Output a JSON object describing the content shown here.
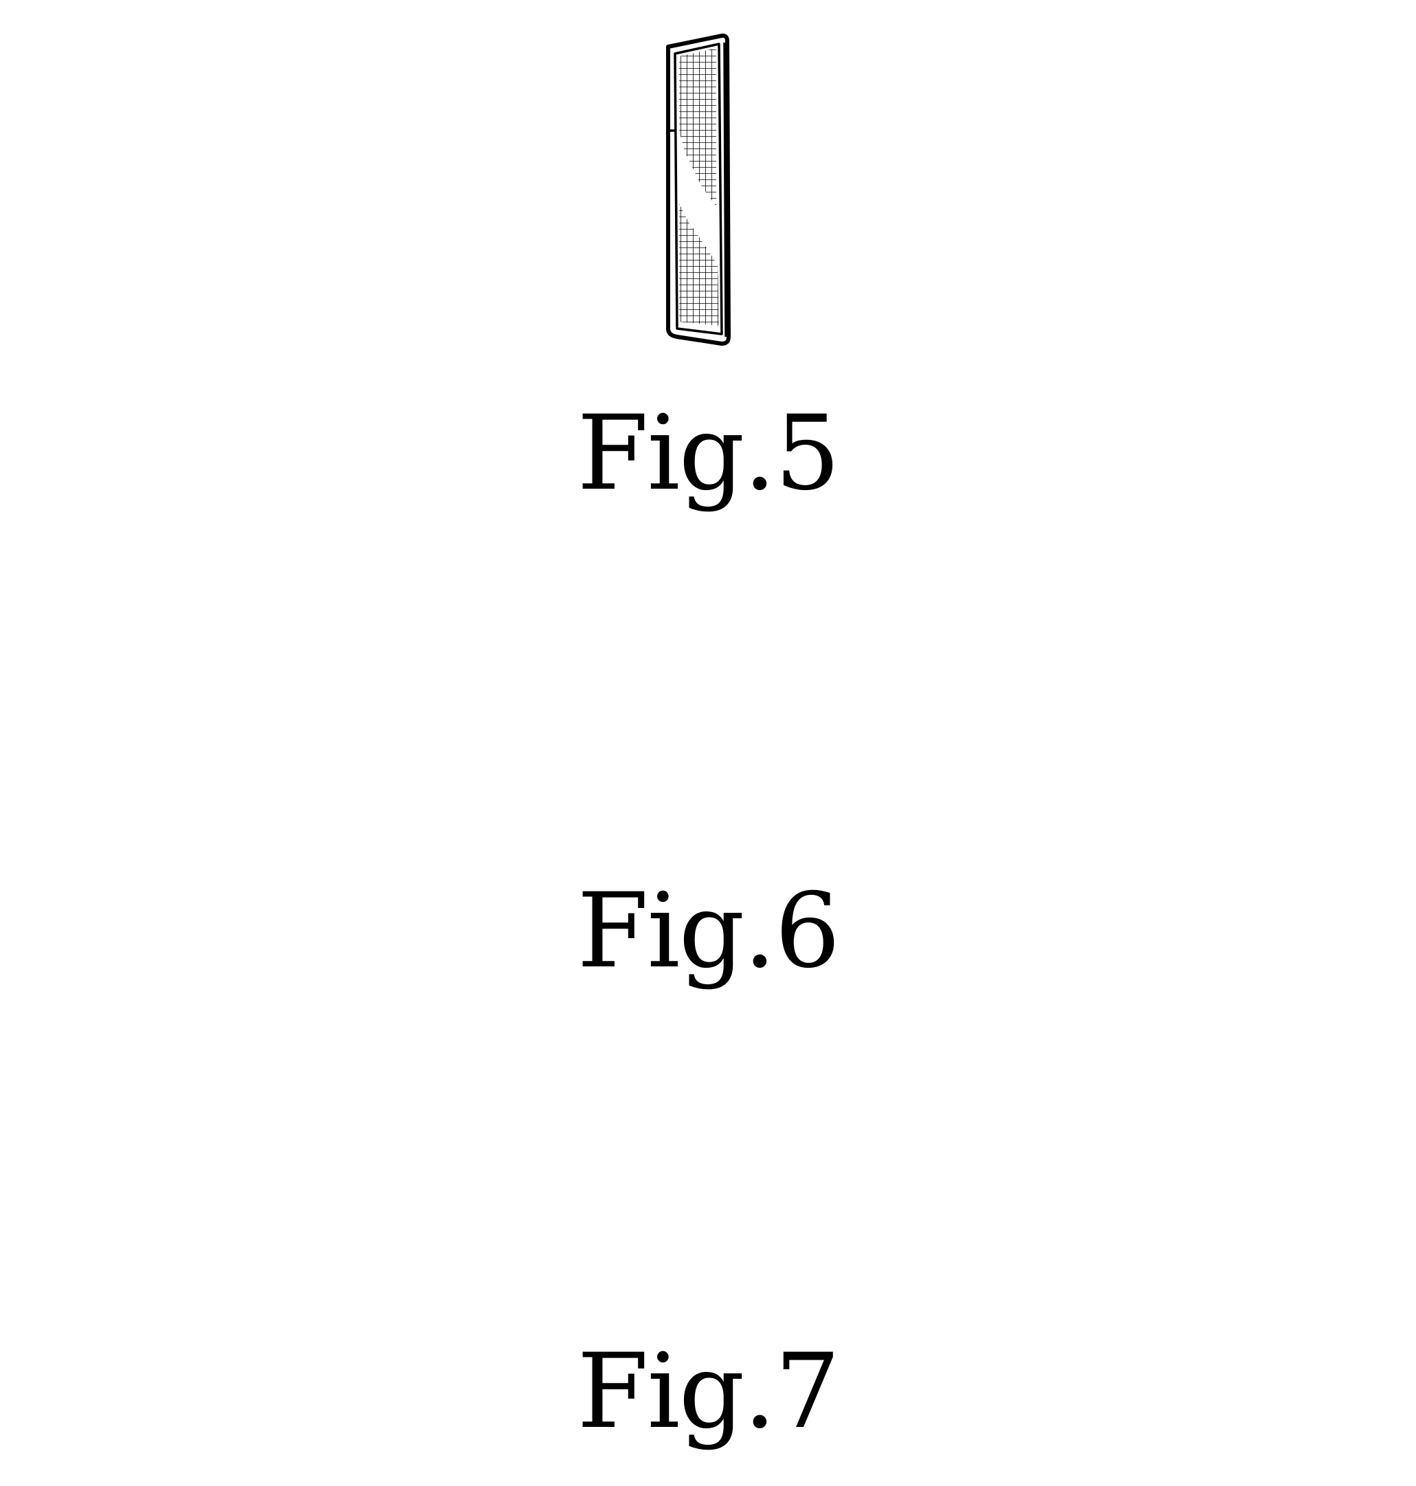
{
  "sheet": {
    "figures": [
      {
        "id": "fig5",
        "label": "Fig.5",
        "view": "end view"
      },
      {
        "id": "fig6",
        "label": "Fig.6",
        "view": "top view"
      },
      {
        "id": "fig7",
        "label": "Fig.7",
        "view": "bottom view"
      }
    ]
  },
  "colors": {
    "ink": "#000000",
    "paper": "#ffffff"
  }
}
